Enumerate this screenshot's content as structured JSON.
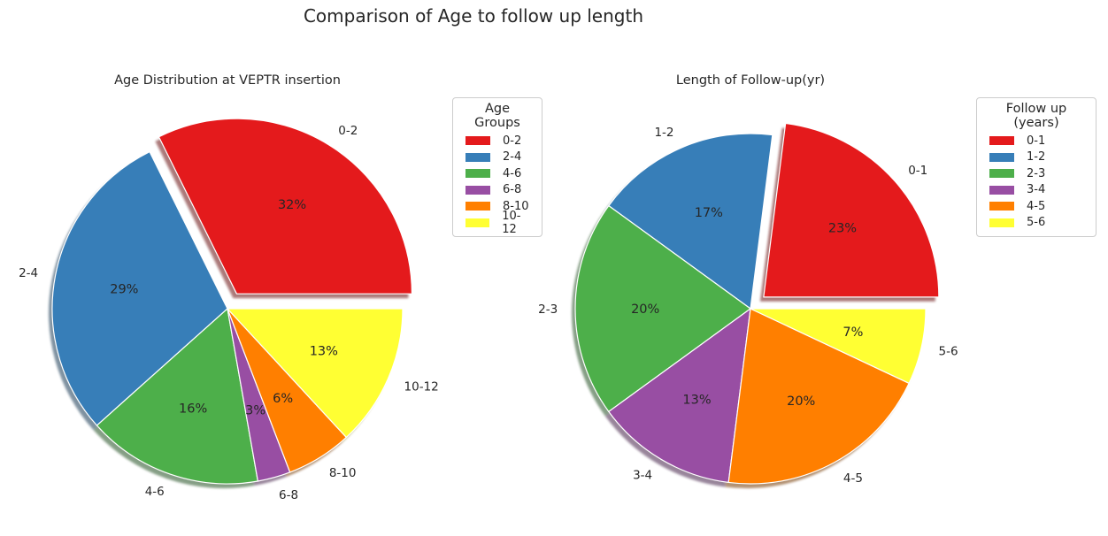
{
  "suptitle": "Comparison of Age to follow up length",
  "chart_data": [
    {
      "type": "pie",
      "title": "Age Distribution at VEPTR insertion",
      "labels": [
        "0-2",
        "2-4",
        "4-6",
        "6-8",
        "8-10",
        "10-12"
      ],
      "values": [
        32,
        29,
        16,
        3,
        6,
        13
      ],
      "pct_labels": [
        "32%",
        "29%",
        "16%",
        "3%",
        "6%",
        "13%"
      ],
      "colors": [
        "#e41a1c",
        "#377eb8",
        "#4daf4a",
        "#984ea3",
        "#ff7f00",
        "#ffff33"
      ],
      "explode": [
        0.1,
        0,
        0,
        0,
        0,
        0
      ],
      "shadow": true,
      "start_angle": 0,
      "direction": "counterclockwise",
      "legend": {
        "title": "Age Groups",
        "placement": "upper-right outside"
      }
    },
    {
      "type": "pie",
      "title": "Length of Follow-up(yr)",
      "labels": [
        "0-1",
        "1-2",
        "2-3",
        "3-4",
        "4-5",
        "5-6"
      ],
      "values": [
        23,
        17,
        20,
        13,
        20,
        7
      ],
      "pct_labels": [
        "23%",
        "17%",
        "20%",
        "13%",
        "20%",
        "7%"
      ],
      "colors": [
        "#e41a1c",
        "#377eb8",
        "#4daf4a",
        "#984ea3",
        "#ff7f00",
        "#ffff33"
      ],
      "explode": [
        0.1,
        0,
        0,
        0,
        0,
        0
      ],
      "shadow": true,
      "start_angle": 0,
      "direction": "counterclockwise",
      "legend": {
        "title": "Follow up (years)",
        "placement": "upper-right outside"
      }
    }
  ]
}
